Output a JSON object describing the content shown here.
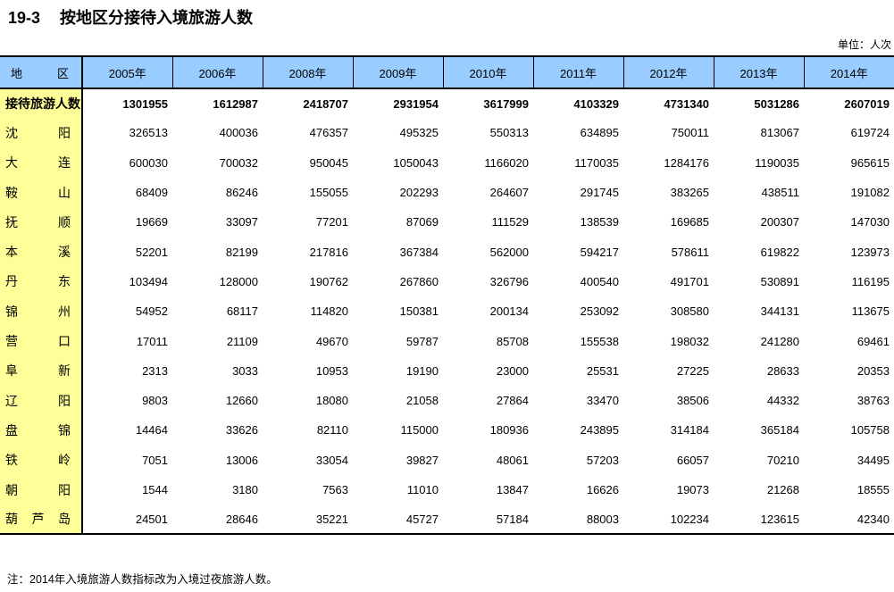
{
  "page": {
    "title_code": "19-3",
    "title_text": "按地区分接待入境旅游人数",
    "unit_label": "单位：人次",
    "note": "注：2014年入境旅游人数指标改为入境过夜旅游人数。"
  },
  "colors": {
    "header_bg": "#99CCFF",
    "region_col_bg": "#FFFF99",
    "border": "#000000"
  },
  "table": {
    "region_header": "地区",
    "year_headers": [
      "2005年",
      "2006年",
      "2008年",
      "2009年",
      "2010年",
      "2011年",
      "2012年",
      "2013年",
      "2014年"
    ],
    "rows": [
      {
        "region": "接待旅游人数",
        "bold": true,
        "values": [
          1301955,
          1612987,
          2418707,
          2931954,
          3617999,
          4103329,
          4731340,
          5031286,
          2607019
        ]
      },
      {
        "region": "沈阳",
        "bold": false,
        "values": [
          326513,
          400036,
          476357,
          495325,
          550313,
          634895,
          750011,
          813067,
          619724
        ]
      },
      {
        "region": "大连",
        "bold": false,
        "values": [
          600030,
          700032,
          950045,
          1050043,
          1166020,
          1170035,
          1284176,
          1190035,
          965615
        ]
      },
      {
        "region": "鞍山",
        "bold": false,
        "values": [
          68409,
          86246,
          155055,
          202293,
          264607,
          291745,
          383265,
          438511,
          191082
        ]
      },
      {
        "region": "抚顺",
        "bold": false,
        "values": [
          19669,
          33097,
          77201,
          87069,
          111529,
          138539,
          169685,
          200307,
          147030
        ]
      },
      {
        "region": "本溪",
        "bold": false,
        "values": [
          52201,
          82199,
          217816,
          367384,
          562000,
          594217,
          578611,
          619822,
          123973
        ]
      },
      {
        "region": "丹东",
        "bold": false,
        "values": [
          103494,
          128000,
          190762,
          267860,
          326796,
          400540,
          491701,
          530891,
          116195
        ]
      },
      {
        "region": "锦州",
        "bold": false,
        "values": [
          54952,
          68117,
          114820,
          150381,
          200134,
          253092,
          308580,
          344131,
          113675
        ]
      },
      {
        "region": "营口",
        "bold": false,
        "values": [
          17011,
          21109,
          49670,
          59787,
          85708,
          155538,
          198032,
          241280,
          69461
        ]
      },
      {
        "region": "阜新",
        "bold": false,
        "values": [
          2313,
          3033,
          10953,
          19190,
          23000,
          25531,
          27225,
          28633,
          20353
        ]
      },
      {
        "region": "辽阳",
        "bold": false,
        "values": [
          9803,
          12660,
          18080,
          21058,
          27864,
          33470,
          38506,
          44332,
          38763
        ]
      },
      {
        "region": "盘锦",
        "bold": false,
        "values": [
          14464,
          33626,
          82110,
          115000,
          180936,
          243895,
          314184,
          365184,
          105758
        ]
      },
      {
        "region": "铁岭",
        "bold": false,
        "values": [
          7051,
          13006,
          33054,
          39827,
          48061,
          57203,
          66057,
          70210,
          34495
        ]
      },
      {
        "region": "朝阳",
        "bold": false,
        "values": [
          1544,
          3180,
          7563,
          11010,
          13847,
          16626,
          19073,
          21268,
          18555
        ]
      },
      {
        "region": "葫芦岛",
        "bold": false,
        "values": [
          24501,
          28646,
          35221,
          45727,
          57184,
          88003,
          102234,
          123615,
          42340
        ]
      }
    ]
  }
}
